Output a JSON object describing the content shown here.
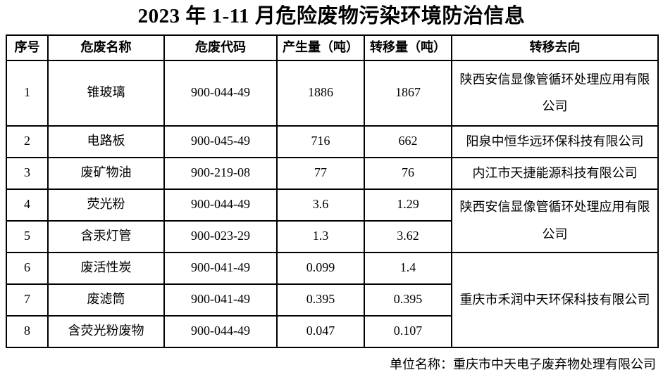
{
  "page": {
    "title": "2023 年 1-11 月危险废物污染环境防治信息",
    "footer_label": "单位名称：重庆市中天电子废弃物处理有限公司"
  },
  "table": {
    "headers": [
      "序号",
      "危废名称",
      "危废代码",
      "产生量（吨）",
      "转移量（吨）",
      "转移去向"
    ],
    "rows": [
      {
        "no": "1",
        "name": "锥玻璃",
        "code": "900-044-49",
        "produced": "1886",
        "transferred": "1867",
        "destination": "陕西安信显像管循环处理应用有限公司"
      },
      {
        "no": "2",
        "name": "电路板",
        "code": "900-045-49",
        "produced": "716",
        "transferred": "662",
        "destination": "阳泉中恒华远环保科技有限公司"
      },
      {
        "no": "3",
        "name": "废矿物油",
        "code": "900-219-08",
        "produced": "77",
        "transferred": "76",
        "destination": "内江市天捷能源科技有限公司"
      },
      {
        "no": "4",
        "name": "荧光粉",
        "code": "900-044-49",
        "produced": "3.6",
        "transferred": "1.29",
        "destination": "陕西安信显像管循环处理应用有限公司"
      },
      {
        "no": "5",
        "name": "含汞灯管",
        "code": "900-023-29",
        "produced": "1.3",
        "transferred": "3.62"
      },
      {
        "no": "6",
        "name": "废活性炭",
        "code": "900-041-49",
        "produced": "0.099",
        "transferred": "1.4",
        "destination": "重庆市禾润中天环保科技有限公司"
      },
      {
        "no": "7",
        "name": "废滤筒",
        "code": "900-041-49",
        "produced": "0.395",
        "transferred": "0.395"
      },
      {
        "no": "8",
        "name": "含荧光粉废物",
        "code": "900-044-49",
        "produced": "0.047",
        "transferred": "0.107"
      }
    ]
  }
}
